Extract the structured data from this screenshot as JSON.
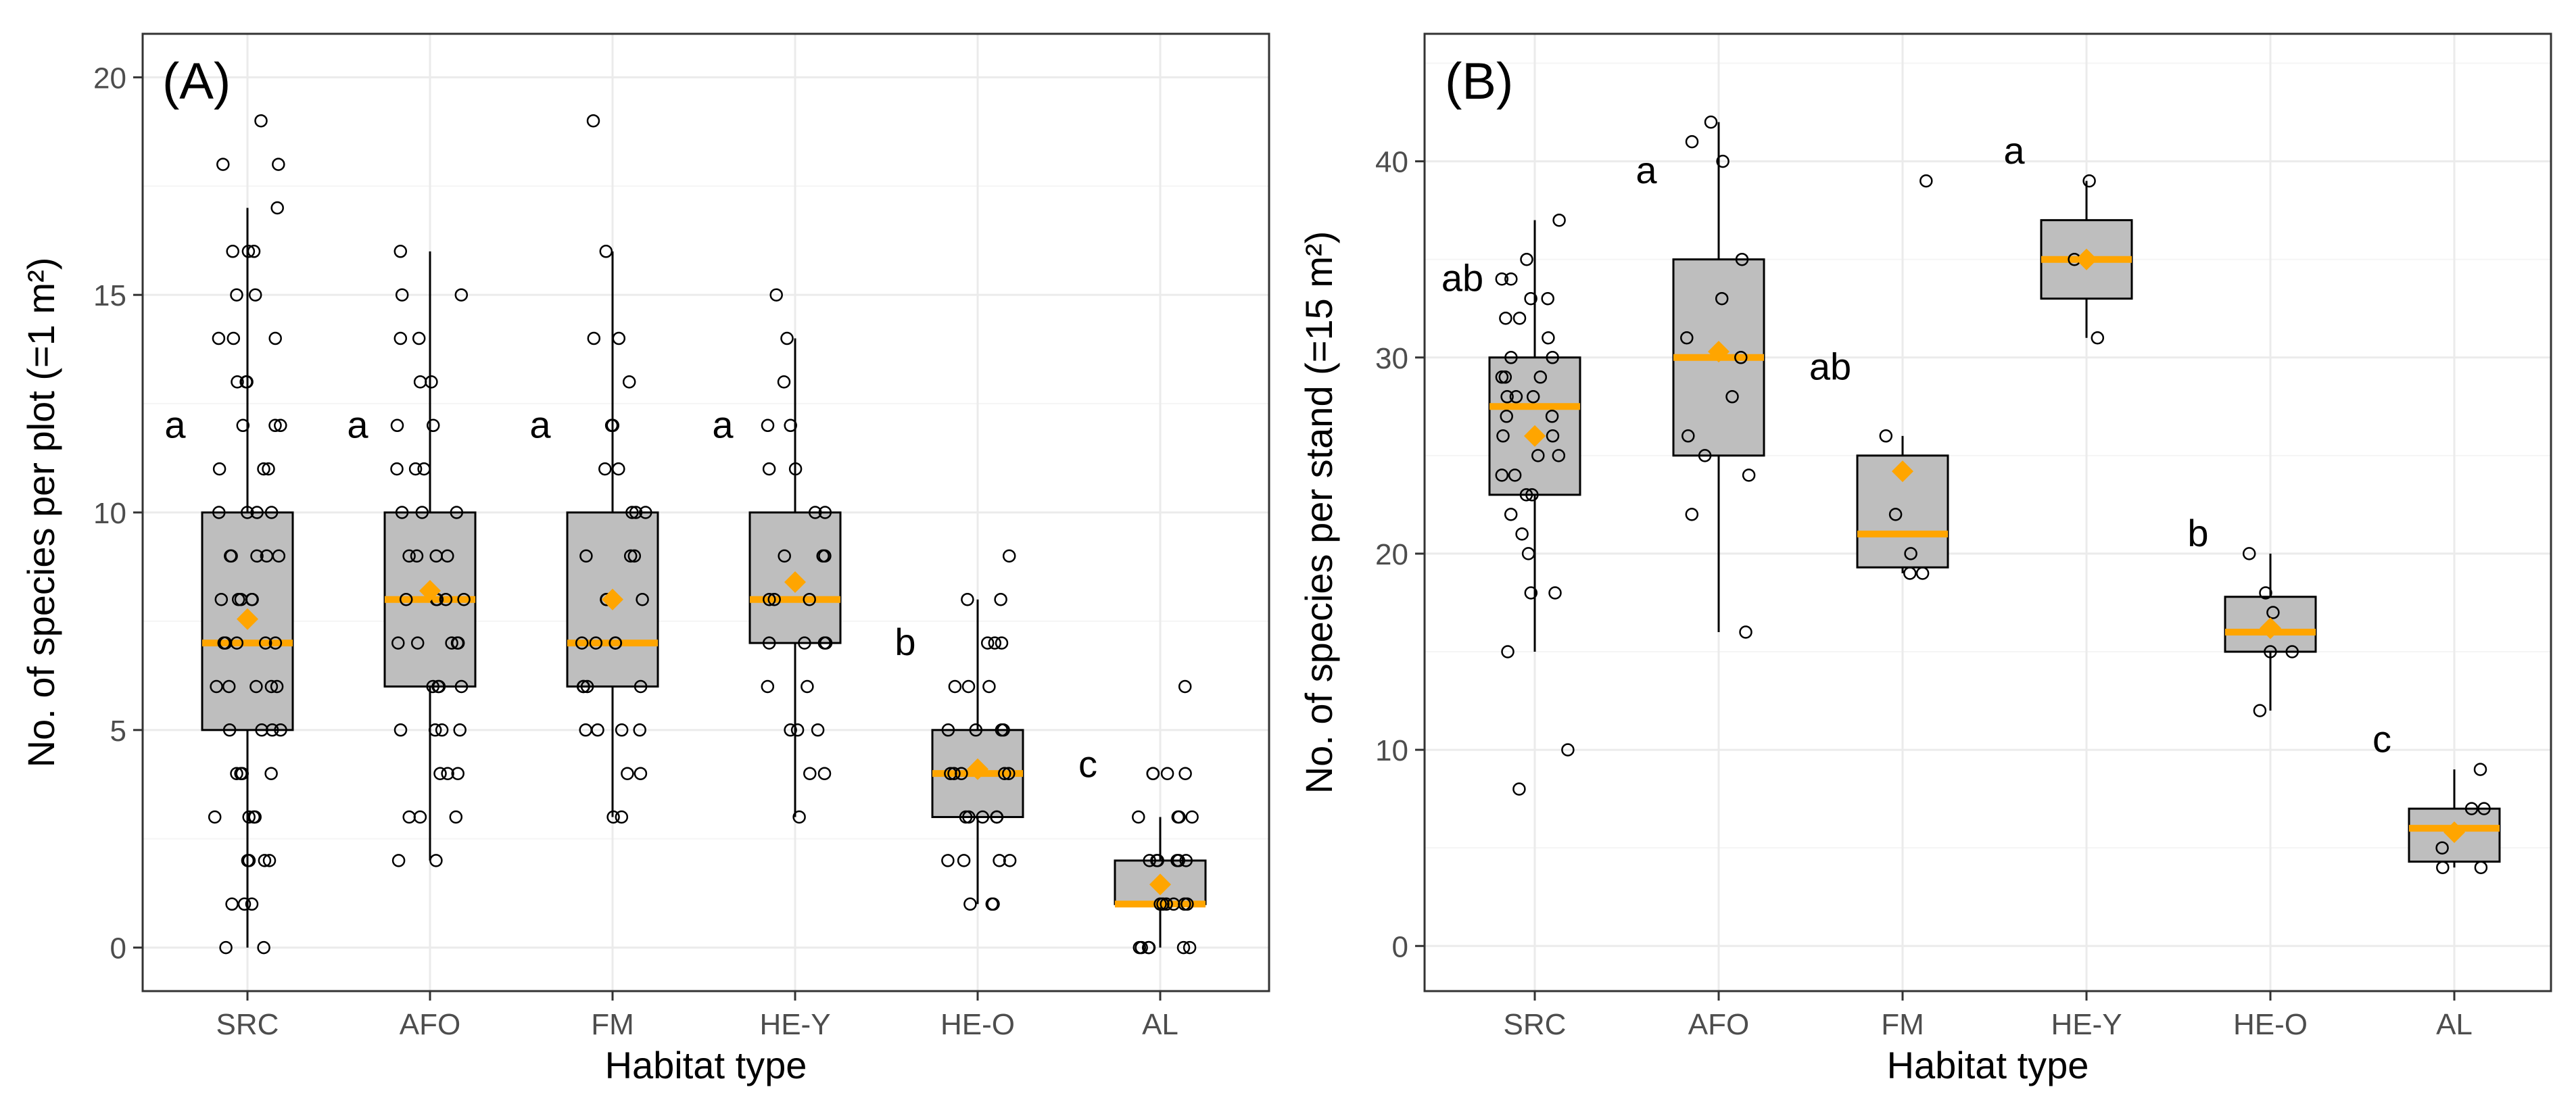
{
  "colors": {
    "box_fill": "#bebebe",
    "median": "#ffa500",
    "mean": "#ffa500",
    "grid_major": "#ebebeb",
    "grid_minor": "#f5f5f5",
    "axis_text": "#4d4d4d",
    "frame": "#333333",
    "points": "#000000"
  },
  "chart_data": [
    {
      "type": "boxplot",
      "panel_label": "(A)",
      "xlabel": "Habitat type",
      "ylabel": "No. of species per plot (=1 m²)",
      "ylim": [
        -1,
        21
      ],
      "yticks": [
        0,
        5,
        10,
        15,
        20
      ],
      "categories": [
        "SRC",
        "AFO",
        "FM",
        "HE-Y",
        "HE-O",
        "AL"
      ],
      "boxes": [
        {
          "q1": 5,
          "median": 7,
          "q3": 10,
          "whisker_low": 0,
          "whisker_high": 17,
          "mean": 7.55,
          "letter": "a",
          "letter_y": 12,
          "points": [
            0,
            0,
            1,
            1,
            1,
            2,
            2,
            2,
            2,
            3,
            3,
            3,
            3,
            4,
            4,
            4,
            4,
            5,
            5,
            5,
            5,
            6,
            6,
            6,
            6,
            6,
            7,
            7,
            7,
            7,
            7,
            8,
            8,
            8,
            8,
            8,
            9,
            9,
            9,
            9,
            9,
            10,
            10,
            10,
            10,
            11,
            11,
            11,
            12,
            12,
            12,
            13,
            13,
            13,
            14,
            14,
            14,
            15,
            15,
            16,
            16,
            16,
            17,
            18,
            18,
            19
          ]
        },
        {
          "q1": 6,
          "median": 8,
          "q3": 10,
          "whisker_low": 2,
          "whisker_high": 16,
          "mean": 8.2,
          "letter": "a",
          "letter_y": 12,
          "points": [
            2,
            2,
            3,
            3,
            3,
            4,
            4,
            4,
            5,
            5,
            5,
            5,
            6,
            6,
            6,
            6,
            7,
            7,
            7,
            7,
            7,
            8,
            8,
            8,
            8,
            8,
            9,
            9,
            9,
            9,
            10,
            10,
            10,
            11,
            11,
            11,
            12,
            12,
            13,
            13,
            14,
            14,
            15,
            15,
            16
          ]
        },
        {
          "q1": 6,
          "median": 7,
          "q3": 10,
          "whisker_low": 3,
          "whisker_high": 16,
          "mean": 8.0,
          "letter": "a",
          "letter_y": 12,
          "points": [
            3,
            3,
            4,
            4,
            5,
            5,
            5,
            5,
            6,
            6,
            6,
            6,
            7,
            7,
            7,
            7,
            8,
            8,
            8,
            9,
            9,
            9,
            10,
            10,
            10,
            11,
            11,
            12,
            12,
            13,
            14,
            14,
            16,
            19
          ]
        },
        {
          "q1": 7,
          "median": 8,
          "q3": 10,
          "whisker_low": 3,
          "whisker_high": 14,
          "mean": 8.4,
          "letter": "a",
          "letter_y": 12,
          "points": [
            3,
            4,
            4,
            5,
            5,
            5,
            6,
            6,
            7,
            7,
            7,
            7,
            8,
            8,
            8,
            9,
            9,
            9,
            10,
            10,
            11,
            11,
            12,
            12,
            13,
            14,
            15
          ]
        },
        {
          "q1": 3,
          "median": 4,
          "q3": 5,
          "whisker_low": 1,
          "whisker_high": 8,
          "mean": 4.1,
          "letter": "b",
          "letter_y": 7,
          "points": [
            1,
            1,
            1,
            2,
            2,
            2,
            2,
            3,
            3,
            3,
            3,
            3,
            4,
            4,
            4,
            4,
            4,
            5,
            5,
            5,
            5,
            6,
            6,
            6,
            7,
            7,
            7,
            8,
            8,
            9
          ]
        },
        {
          "q1": 1,
          "median": 1,
          "q3": 2,
          "whisker_low": 0,
          "whisker_high": 3,
          "mean": 1.45,
          "letter": "c",
          "letter_y": 4.2,
          "points": [
            0,
            0,
            0,
            0,
            0,
            0,
            1,
            1,
            1,
            1,
            1,
            1,
            2,
            2,
            2,
            2,
            2,
            2,
            3,
            3,
            3,
            3,
            4,
            4,
            4,
            4,
            6
          ]
        }
      ]
    },
    {
      "type": "boxplot",
      "panel_label": "(B)",
      "xlabel": "Habitat type",
      "ylabel": "No. of species per stand (=15 m²)",
      "ylim": [
        -2.3,
        46.5
      ],
      "yticks": [
        0,
        10,
        20,
        30,
        40
      ],
      "categories": [
        "SRC",
        "AFO",
        "FM",
        "HE-Y",
        "HE-O",
        "AL"
      ],
      "boxes": [
        {
          "q1": 23,
          "median": 27.5,
          "q3": 30,
          "whisker_low": 15,
          "whisker_high": 37,
          "mean": 26,
          "letter": "ab",
          "letter_y": 34,
          "points": [
            8,
            10,
            15,
            18,
            18,
            20,
            21,
            22,
            23,
            23,
            24,
            24,
            25,
            25,
            26,
            26,
            27,
            27,
            28,
            28,
            28,
            29,
            29,
            29,
            30,
            30,
            31,
            32,
            32,
            33,
            33,
            34,
            34,
            35,
            37
          ]
        },
        {
          "q1": 25,
          "median": 30,
          "q3": 35,
          "whisker_low": 16,
          "whisker_high": 42,
          "mean": 30.3,
          "letter": "a",
          "letter_y": 39.5,
          "points": [
            16,
            22,
            24,
            25,
            26,
            28,
            30,
            31,
            33,
            35,
            40,
            41,
            42
          ]
        },
        {
          "q1": 19.3,
          "median": 21,
          "q3": 25,
          "whisker_low": 19,
          "whisker_high": 26,
          "mean": 24.2,
          "letter": "ab",
          "letter_y": 29.5,
          "points": [
            19,
            19,
            20,
            22,
            26,
            39
          ]
        },
        {
          "q1": 33,
          "median": 35,
          "q3": 37,
          "whisker_low": 31,
          "whisker_high": 39,
          "mean": 35,
          "letter": "a",
          "letter_y": 40.5,
          "points": [
            31,
            35,
            39
          ]
        },
        {
          "q1": 15,
          "median": 16,
          "q3": 17.8,
          "whisker_low": 12,
          "whisker_high": 20,
          "mean": 16.2,
          "letter": "b",
          "letter_y": 21,
          "points": [
            12,
            15,
            15,
            17,
            18,
            20
          ]
        },
        {
          "q1": 4.3,
          "median": 6,
          "q3": 7,
          "whisker_low": 4,
          "whisker_high": 9,
          "mean": 5.8,
          "letter": "c",
          "letter_y": 10.5,
          "points": [
            4,
            4,
            5,
            7,
            7,
            9
          ]
        }
      ]
    }
  ]
}
